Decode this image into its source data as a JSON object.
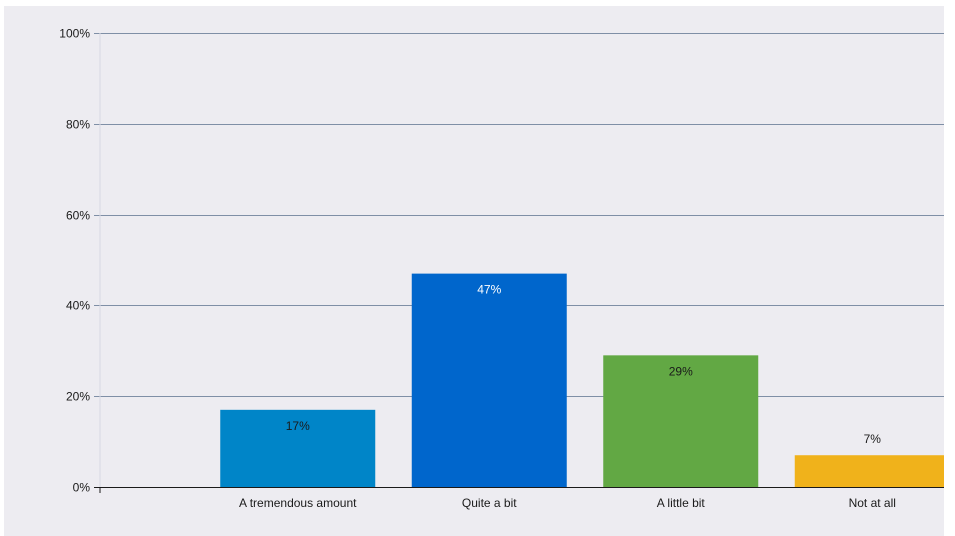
{
  "chart_data": {
    "type": "bar",
    "categories": [
      "A tremendous amount",
      "Quite a bit",
      "A little bit",
      "Not at all"
    ],
    "values": [
      17,
      47,
      29,
      7
    ],
    "data_labels": [
      "17%",
      "47%",
      "29%",
      "7%"
    ],
    "colors": [
      "#0085c8",
      "#0066cc",
      "#62a844",
      "#f0b21b"
    ],
    "label_colors": [
      "#1a1a1a",
      "#ffffff",
      "#1a1a1a",
      "#1a1a1a"
    ],
    "label_position": [
      "inside",
      "inside",
      "inside",
      "outside"
    ],
    "yticks": [
      {
        "value": 0,
        "label": "0%"
      },
      {
        "value": 20,
        "label": "20%"
      },
      {
        "value": 40,
        "label": "40%"
      },
      {
        "value": 60,
        "label": "60%"
      },
      {
        "value": 80,
        "label": "80%"
      },
      {
        "value": 100,
        "label": "100%"
      }
    ],
    "ylim": [
      0,
      100
    ],
    "title": "",
    "xlabel": "",
    "ylabel": "",
    "grid": true,
    "legend": "none",
    "gridline_color": "#7f8fa6",
    "background_color": "#edecf1"
  }
}
